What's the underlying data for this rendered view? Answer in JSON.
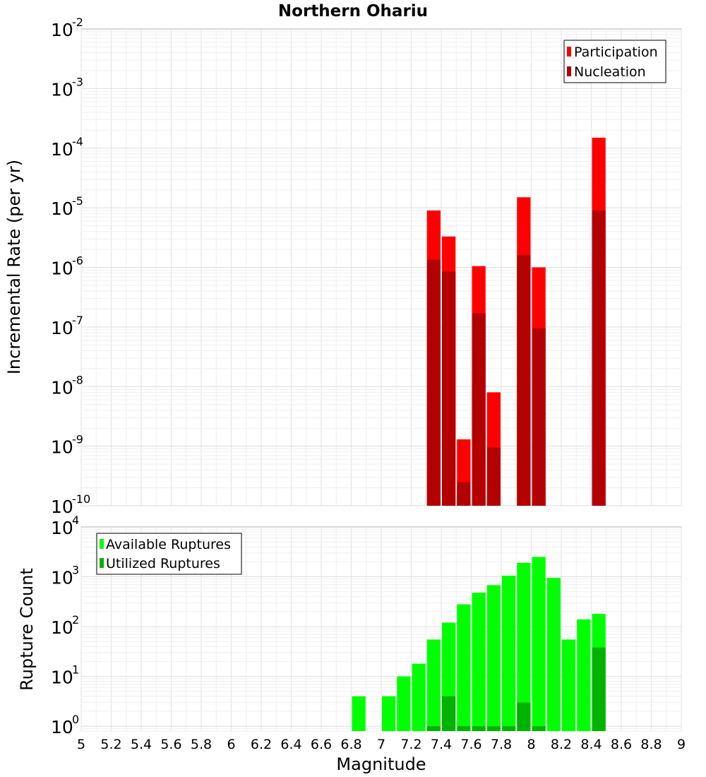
{
  "chart_data": [
    {
      "type": "bar",
      "title": "Northern Ohariu",
      "xlabel": "",
      "ylabel": "Incremental Rate (per yr)",
      "xlim": [
        5,
        9
      ],
      "ylim": [
        1e-10,
        0.01
      ],
      "yscale": "log",
      "bar_width": 0.1,
      "grid": true,
      "legend_position": "top-right",
      "overlay": true,
      "series": [
        {
          "name": "Participation",
          "color": "#ff0000",
          "points": [
            [
              7.35,
              9e-06
            ],
            [
              7.45,
              3.3e-06
            ],
            [
              7.55,
              1.3e-09
            ],
            [
              7.65,
              1.05e-06
            ],
            [
              7.75,
              8e-09
            ],
            [
              7.95,
              1.5e-05
            ],
            [
              8.05,
              1e-06
            ],
            [
              8.45,
              0.00015
            ]
          ]
        },
        {
          "name": "Nucleation",
          "color": "#b30000",
          "points": [
            [
              7.35,
              1.35e-06
            ],
            [
              7.45,
              8.5e-07
            ],
            [
              7.55,
              2.5e-10
            ],
            [
              7.65,
              1.7e-07
            ],
            [
              7.75,
              9.5e-10
            ],
            [
              7.95,
              1.6e-06
            ],
            [
              8.05,
              9.5e-08
            ],
            [
              8.45,
              9e-06
            ]
          ]
        }
      ]
    },
    {
      "type": "bar",
      "title": "",
      "xlabel": "Magnitude",
      "ylabel": "Rupture Count",
      "xlim": [
        5,
        9
      ],
      "ylim": [
        0.8,
        10000.0
      ],
      "yscale": "log",
      "bar_width": 0.1,
      "grid": true,
      "legend_position": "top-left",
      "overlay": true,
      "xticks": [
        "5",
        "5.2",
        "5.4",
        "5.6",
        "5.8",
        "6",
        "6.2",
        "6.4",
        "6.6",
        "6.8",
        "7",
        "7.2",
        "7.4",
        "7.6",
        "7.8",
        "8",
        "8.2",
        "8.4",
        "8.6",
        "8.8",
        "9"
      ],
      "series": [
        {
          "name": "Available Ruptures",
          "color": "#00ff00",
          "points": [
            [
              6.85,
              4
            ],
            [
              7.05,
              4
            ],
            [
              7.15,
              10
            ],
            [
              7.25,
              18
            ],
            [
              7.35,
              55
            ],
            [
              7.45,
              120
            ],
            [
              7.55,
              280
            ],
            [
              7.65,
              480
            ],
            [
              7.75,
              680
            ],
            [
              7.85,
              1050
            ],
            [
              7.95,
              1900
            ],
            [
              8.05,
              2500
            ],
            [
              8.15,
              950
            ],
            [
              8.25,
              55
            ],
            [
              8.35,
              140
            ],
            [
              8.45,
              180
            ]
          ]
        },
        {
          "name": "Utilized Ruptures",
          "color": "#00b300",
          "points": [
            [
              7.35,
              1
            ],
            [
              7.45,
              4
            ],
            [
              7.55,
              1
            ],
            [
              7.65,
              1
            ],
            [
              7.75,
              1
            ],
            [
              7.85,
              1
            ],
            [
              7.95,
              3
            ],
            [
              8.05,
              1
            ],
            [
              8.45,
              38
            ]
          ]
        }
      ]
    }
  ]
}
